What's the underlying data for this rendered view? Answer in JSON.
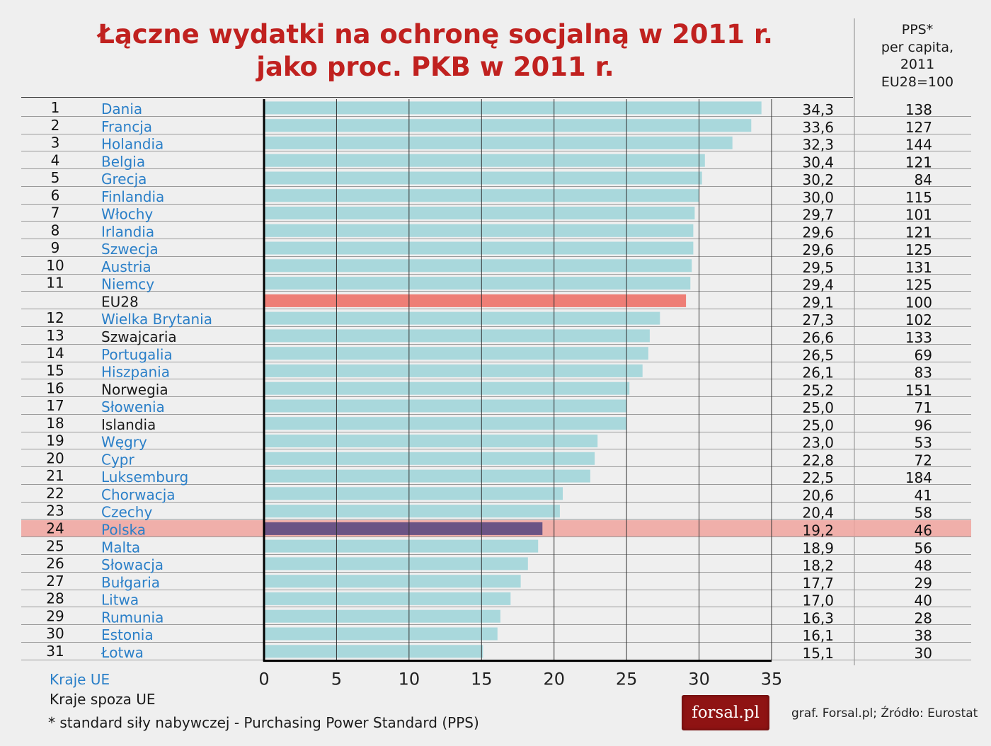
{
  "chart_data": {
    "type": "bar",
    "orientation": "horizontal",
    "title_lines": [
      "Łączne wydatki na ochronę socjalną w 2011 r.",
      "jako proc. PKB w 2011 r."
    ],
    "pps_header_lines": [
      "PPS*",
      "per capita,",
      "2011",
      "EU28=100"
    ],
    "xlim": [
      0,
      35
    ],
    "x_ticks": [
      "0",
      "5",
      "10",
      "15",
      "20",
      "25",
      "30",
      "35"
    ],
    "grid": "vertical",
    "colors": {
      "eu_label": "#2a7fc8",
      "non_eu_label": "#1a1a1a",
      "bar": "#a9d8dc",
      "eu28_bar": "#ee7e76",
      "poland_bar": "#6b5485",
      "title": "#c0211f"
    },
    "rows": [
      {
        "rank": "1",
        "country": "Dania",
        "value": 34.3,
        "label": "34,3",
        "pps": "138",
        "group": "eu"
      },
      {
        "rank": "2",
        "country": "Francja",
        "value": 33.6,
        "label": "33,6",
        "pps": "127",
        "group": "eu"
      },
      {
        "rank": "3",
        "country": "Holandia",
        "value": 32.3,
        "label": "32,3",
        "pps": "144",
        "group": "eu"
      },
      {
        "rank": "4",
        "country": "Belgia",
        "value": 30.4,
        "label": "30,4",
        "pps": "121",
        "group": "eu"
      },
      {
        "rank": "5",
        "country": "Grecja",
        "value": 30.2,
        "label": "30,2",
        "pps": "84",
        "group": "eu"
      },
      {
        "rank": "6",
        "country": "Finlandia",
        "value": 30.0,
        "label": "30,0",
        "pps": "115",
        "group": "eu"
      },
      {
        "rank": "7",
        "country": "Włochy",
        "value": 29.7,
        "label": "29,7",
        "pps": "101",
        "group": "eu"
      },
      {
        "rank": "8",
        "country": "Irlandia",
        "value": 29.6,
        "label": "29,6",
        "pps": "121",
        "group": "eu"
      },
      {
        "rank": "9",
        "country": "Szwecja",
        "value": 29.6,
        "label": "29,6",
        "pps": "125",
        "group": "eu"
      },
      {
        "rank": "10",
        "country": "Austria",
        "value": 29.5,
        "label": "29,5",
        "pps": "131",
        "group": "eu"
      },
      {
        "rank": "11",
        "country": "Niemcy",
        "value": 29.4,
        "label": "29,4",
        "pps": "125",
        "group": "eu"
      },
      {
        "rank": "",
        "country": "EU28",
        "value": 29.1,
        "label": "29,1",
        "pps": "100",
        "group": "eu28"
      },
      {
        "rank": "12",
        "country": "Wielka Brytania",
        "value": 27.3,
        "label": "27,3",
        "pps": "102",
        "group": "eu"
      },
      {
        "rank": "13",
        "country": "Szwajcaria",
        "value": 26.6,
        "label": "26,6",
        "pps": "133",
        "group": "non-eu"
      },
      {
        "rank": "14",
        "country": "Portugalia",
        "value": 26.5,
        "label": "26,5",
        "pps": "69",
        "group": "eu"
      },
      {
        "rank": "15",
        "country": "Hiszpania",
        "value": 26.1,
        "label": "26,1",
        "pps": "83",
        "group": "eu"
      },
      {
        "rank": "16",
        "country": "Norwegia",
        "value": 25.2,
        "label": "25,2",
        "pps": "151",
        "group": "non-eu"
      },
      {
        "rank": "17",
        "country": "Słowenia",
        "value": 25.0,
        "label": "25,0",
        "pps": "71",
        "group": "eu"
      },
      {
        "rank": "18",
        "country": "Islandia",
        "value": 25.0,
        "label": "25,0",
        "pps": "96",
        "group": "non-eu"
      },
      {
        "rank": "19",
        "country": "Węgry",
        "value": 23.0,
        "label": "23,0",
        "pps": "53",
        "group": "eu"
      },
      {
        "rank": "20",
        "country": "Cypr",
        "value": 22.8,
        "label": "22,8",
        "pps": "72",
        "group": "eu"
      },
      {
        "rank": "21",
        "country": "Luksemburg",
        "value": 22.5,
        "label": "22,5",
        "pps": "184",
        "group": "eu"
      },
      {
        "rank": "22",
        "country": "Chorwacja",
        "value": 20.6,
        "label": "20,6",
        "pps": "41",
        "group": "eu"
      },
      {
        "rank": "23",
        "country": "Czechy",
        "value": 20.4,
        "label": "20,4",
        "pps": "58",
        "group": "eu"
      },
      {
        "rank": "24",
        "country": "Polska",
        "value": 19.2,
        "label": "19,2",
        "pps": "46",
        "group": "poland"
      },
      {
        "rank": "25",
        "country": "Malta",
        "value": 18.9,
        "label": "18,9",
        "pps": "56",
        "group": "eu"
      },
      {
        "rank": "26",
        "country": "Słowacja",
        "value": 18.2,
        "label": "18,2",
        "pps": "48",
        "group": "eu"
      },
      {
        "rank": "27",
        "country": "Bułgaria",
        "value": 17.7,
        "label": "17,7",
        "pps": "29",
        "group": "eu"
      },
      {
        "rank": "28",
        "country": "Litwa",
        "value": 17.0,
        "label": "17,0",
        "pps": "40",
        "group": "eu"
      },
      {
        "rank": "29",
        "country": "Rumunia",
        "value": 16.3,
        "label": "16,3",
        "pps": "28",
        "group": "eu"
      },
      {
        "rank": "30",
        "country": "Estonia",
        "value": 16.1,
        "label": "16,1",
        "pps": "38",
        "group": "eu"
      },
      {
        "rank": "31",
        "country": "Łotwa",
        "value": 15.1,
        "label": "15,1",
        "pps": "30",
        "group": "eu"
      }
    ]
  },
  "legend": {
    "eu_label": "Kraje UE",
    "non_eu_label": "Kraje spoza UE",
    "footnote": "* standard siły nabywczej - Purchasing Power Standard (PPS)"
  },
  "branding": {
    "logo_text": "forsal.pl",
    "credit": "graf. Forsal.pl; Źródło: Eurostat"
  }
}
